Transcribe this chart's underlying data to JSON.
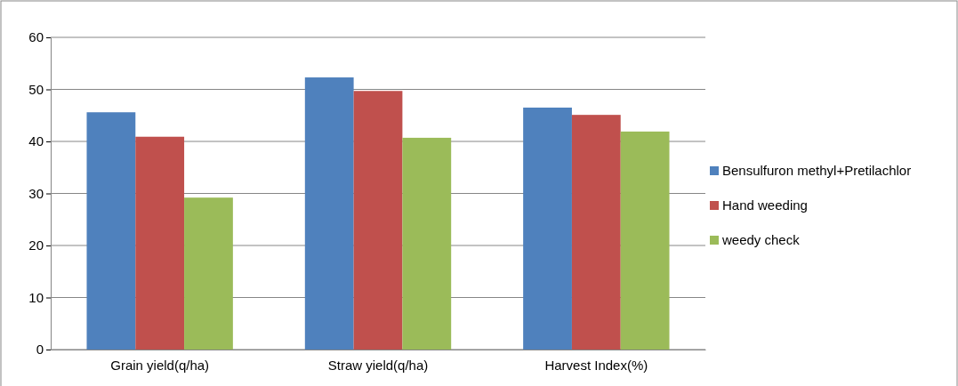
{
  "chart_data": {
    "type": "bar",
    "categories": [
      "Grain yield(q/ha)",
      "Straw yield(q/ha)",
      "Harvest Index(%)"
    ],
    "series": [
      {
        "name": "Bensulfuron methyl+Pretilachlor",
        "color": "#4f81bd",
        "values": [
          45.6,
          52.3,
          46.5
        ]
      },
      {
        "name": "Hand weeding",
        "color": "#c0504d",
        "values": [
          40.9,
          49.7,
          45.1
        ]
      },
      {
        "name": "weedy check",
        "color": "#9bbb59",
        "values": [
          29.2,
          40.7,
          41.9
        ]
      }
    ],
    "ylim": [
      0,
      60
    ],
    "yticks": [
      0,
      10,
      20,
      30,
      40,
      50,
      60
    ],
    "grid": "y",
    "legend": "right"
  }
}
